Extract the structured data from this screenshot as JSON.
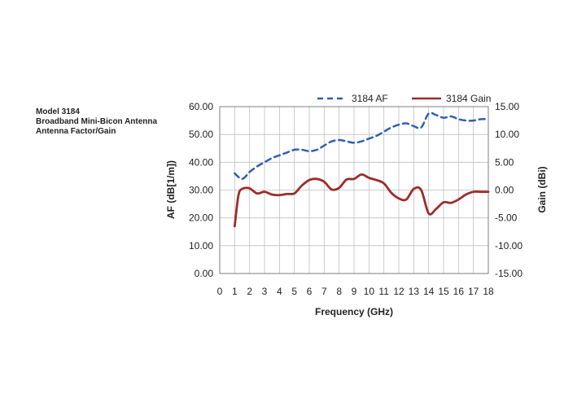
{
  "caption": {
    "line1": "Model 3184",
    "line2": "Broadband Mini-Bicon Antenna",
    "line3": "Antenna Factor/Gain"
  },
  "chart_data": {
    "type": "line",
    "xlabel": "Frequency (GHz)",
    "ylabel_left": "AF (dB[1/m])",
    "ylabel_right": "Gain (dBi)",
    "xlim": [
      0,
      18
    ],
    "x_ticks": [
      "0",
      "1",
      "2",
      "3",
      "4",
      "5",
      "6",
      "7",
      "8",
      "9",
      "10",
      "11",
      "12",
      "13",
      "14",
      "15",
      "16",
      "17",
      "18"
    ],
    "ylim_left": [
      0,
      60
    ],
    "y_ticks_left": [
      "0.00",
      "10.00",
      "20.00",
      "30.00",
      "40.00",
      "50.00",
      "60.00"
    ],
    "ylim_right": [
      -15,
      15
    ],
    "y_ticks_right": [
      "-15.00",
      "-10.00",
      "-5.00",
      "0.00",
      "5.00",
      "10.00",
      "15.00"
    ],
    "grid": true,
    "legend": "top",
    "series": [
      {
        "name": "3184 AF",
        "axis": "left",
        "color": "#2f5fb3",
        "style": "dashed",
        "x": [
          1,
          1.5,
          2,
          2.5,
          3,
          3.5,
          4,
          4.5,
          5,
          5.5,
          6,
          6.5,
          7,
          7.5,
          8,
          8.5,
          9,
          9.5,
          10,
          10.5,
          11,
          11.5,
          12,
          12.5,
          13,
          13.5,
          14,
          14.5,
          15,
          15.5,
          16,
          16.5,
          17,
          17.5,
          18
        ],
        "y": [
          36,
          34,
          36.5,
          38.5,
          40,
          41.5,
          42.5,
          43.5,
          44.5,
          44.5,
          44,
          44.5,
          46,
          47.5,
          48,
          47.5,
          47,
          47.5,
          48.5,
          49.5,
          51,
          52.5,
          53.5,
          54,
          53,
          52.5,
          57.5,
          57,
          56,
          56.5,
          55.5,
          55,
          55,
          55.5,
          55.5
        ]
      },
      {
        "name": "3184 Gain",
        "axis": "right",
        "color": "#9b2d2a",
        "style": "solid",
        "x": [
          1,
          1.25,
          1.5,
          2,
          2.5,
          3,
          3.5,
          4,
          4.5,
          5,
          5.5,
          6,
          6.5,
          7,
          7.5,
          8,
          8.5,
          9,
          9.5,
          10,
          10.5,
          11,
          11.5,
          12,
          12.5,
          13,
          13.5,
          14,
          14.5,
          15,
          15.5,
          16,
          16.5,
          17,
          17.5,
          18
        ],
        "y": [
          -6.5,
          -1,
          0.2,
          0.3,
          -0.6,
          -0.3,
          -0.8,
          -0.9,
          -0.7,
          -0.6,
          0.8,
          1.8,
          2,
          1.5,
          0.1,
          0.4,
          1.9,
          2,
          2.8,
          2.2,
          1.8,
          1.2,
          -0.5,
          -1.5,
          -1.7,
          0.2,
          0,
          -4.2,
          -3.4,
          -2.2,
          -2.3,
          -1.7,
          -0.8,
          -0.3,
          -0.3,
          -0.3
        ]
      }
    ]
  }
}
